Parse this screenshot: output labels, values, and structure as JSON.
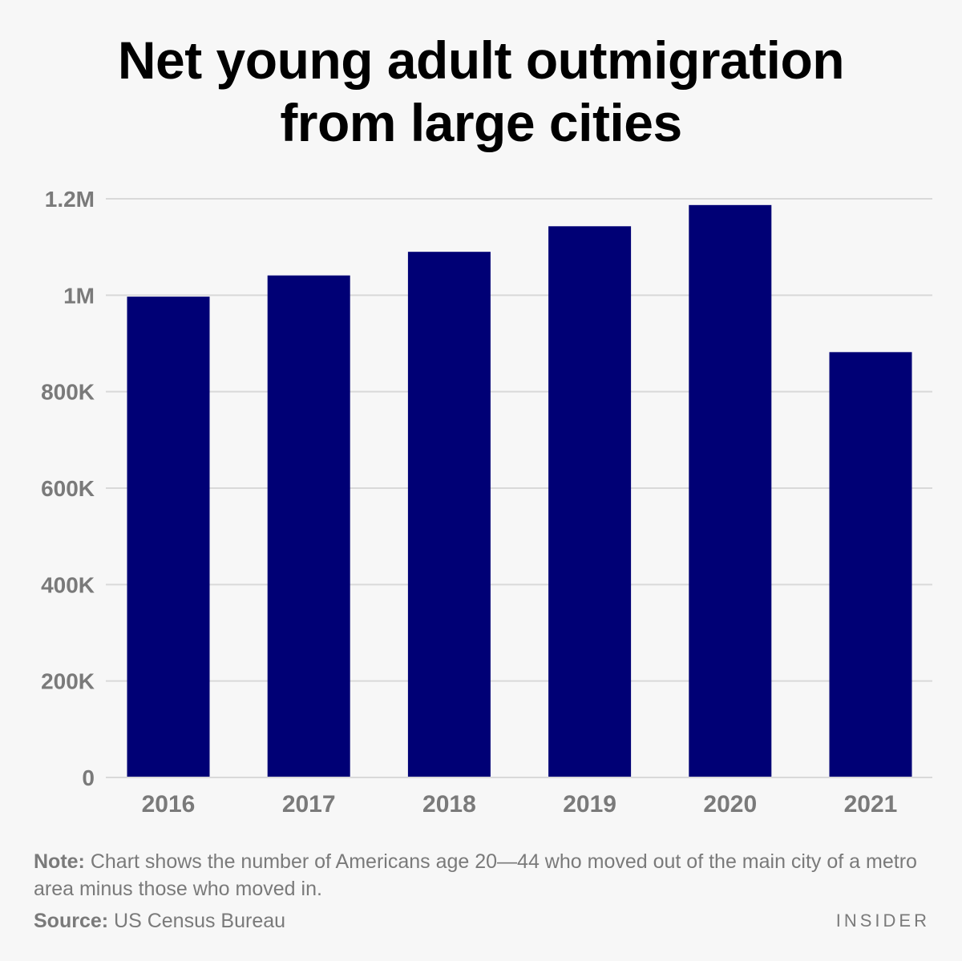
{
  "title_lines": [
    "Net young adult outmigration",
    "from large cities"
  ],
  "note": {
    "label": "Note:",
    "text": "Chart shows the number of Americans age 20—44 who moved out of the main city of a metro area minus those who moved in."
  },
  "source": {
    "label": "Source:",
    "text": "US Census Bureau"
  },
  "brand": "INSIDER",
  "colors": {
    "bar": "#000075",
    "grid": "#d9d9d9",
    "tick": "#7a7a7a",
    "background": "#f7f7f7"
  },
  "chart_data": {
    "type": "bar",
    "title": "Net young adult outmigration from large cities",
    "xlabel": "",
    "ylabel": "",
    "categories": [
      "2016",
      "2017",
      "2018",
      "2019",
      "2020",
      "2021"
    ],
    "values": [
      997000,
      1041000,
      1090000,
      1143000,
      1187000,
      882000
    ],
    "ylim": [
      0,
      1200000
    ],
    "yticks": [
      0,
      200000,
      400000,
      600000,
      800000,
      1000000,
      1200000
    ],
    "ytick_labels": [
      "0",
      "200K",
      "400K",
      "600K",
      "800K",
      "1M",
      "1.2M"
    ],
    "grid": true,
    "legend": "none"
  }
}
